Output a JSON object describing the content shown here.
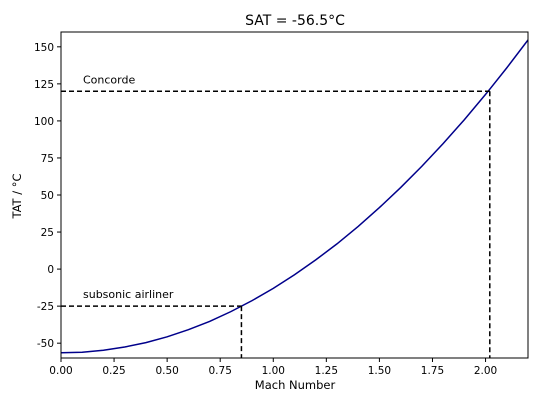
{
  "chart_data": {
    "type": "line",
    "title": "SAT = -56.5°C",
    "xlabel": "Mach Number",
    "ylabel": "TAT / °C",
    "xlim": [
      0,
      2.2
    ],
    "ylim": [
      -60,
      160
    ],
    "xticks": [
      "0.00",
      "0.25",
      "0.50",
      "0.75",
      "1.00",
      "1.25",
      "1.50",
      "1.75",
      "2.00"
    ],
    "yticks": [
      "-50",
      "-25",
      "0",
      "25",
      "50",
      "75",
      "100",
      "125",
      "150"
    ],
    "grid": false,
    "series": [
      {
        "color": "#00008b",
        "x": [
          0.0,
          0.1,
          0.2,
          0.3,
          0.4,
          0.5,
          0.6,
          0.7,
          0.8,
          0.85,
          0.9,
          1.0,
          1.1,
          1.2,
          1.3,
          1.4,
          1.5,
          1.6,
          1.7,
          1.8,
          1.9,
          2.0,
          2.02,
          2.1,
          2.2
        ],
        "y": [
          -56.5,
          -56.1,
          -54.8,
          -52.6,
          -49.6,
          -45.7,
          -40.9,
          -35.3,
          -28.7,
          -25.0,
          -21.3,
          -13.0,
          -3.8,
          6.2,
          17.0,
          28.8,
          41.5,
          55.0,
          69.4,
          84.7,
          100.8,
          117.9,
          121.4,
          135.8,
          154.6
        ]
      }
    ],
    "reference_lines": [
      {
        "label": "subsonic airliner",
        "x": 0.85,
        "y": -25,
        "color": "#000000"
      },
      {
        "label": "Concorde",
        "x": 2.02,
        "y": 120,
        "color": "#000000"
      }
    ]
  }
}
